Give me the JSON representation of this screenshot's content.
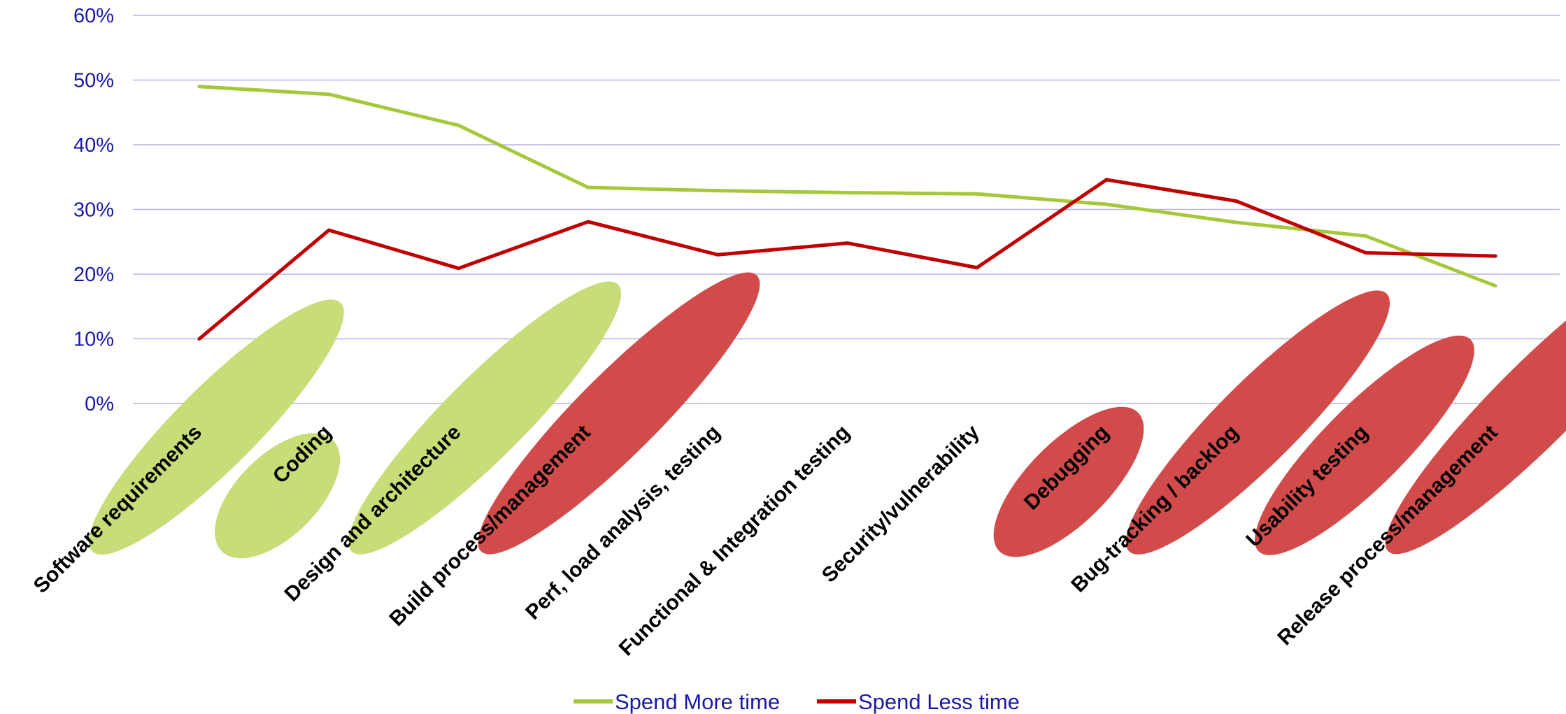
{
  "chart_data": {
    "type": "line",
    "title": "",
    "xlabel": "",
    "ylabel": "",
    "ylim": [
      0,
      60
    ],
    "y_ticks": [
      "0%",
      "10%",
      "20%",
      "30%",
      "40%",
      "50%",
      "60%"
    ],
    "y_tick_values": [
      0,
      10,
      20,
      30,
      40,
      50,
      60
    ],
    "grid": "horizontal",
    "legend_position": "bottom",
    "categories": [
      "Software requirements",
      "Coding",
      "Design and architecture",
      "Build process/management",
      "Perf, load analysis, testing",
      "Functional & Integration testing",
      "Security/vulnerability",
      "Debugging",
      "Bug-tracking / backlog",
      "Usability testing",
      "Release process/management"
    ],
    "category_highlight": [
      "more",
      "more",
      "more",
      "less",
      "none",
      "none",
      "none",
      "less",
      "less",
      "less",
      "less"
    ],
    "series": [
      {
        "name": "Spend More time",
        "color": "#a5c83b",
        "values": [
          49,
          47.8,
          43,
          33.4,
          32.9,
          32.6,
          32.4,
          30.8,
          28,
          25.9,
          18.2
        ]
      },
      {
        "name": "Spend Less time",
        "color": "#c00000",
        "values": [
          10,
          26.8,
          20.9,
          28.1,
          23,
          24.8,
          21,
          34.6,
          31.3,
          23.3,
          22.8
        ]
      }
    ],
    "colors": {
      "grid": "#b3b3e6",
      "axis_text": "#1a1aa6",
      "highlight_more": "#c8dc78",
      "highlight_less": "#d24b4b"
    }
  }
}
